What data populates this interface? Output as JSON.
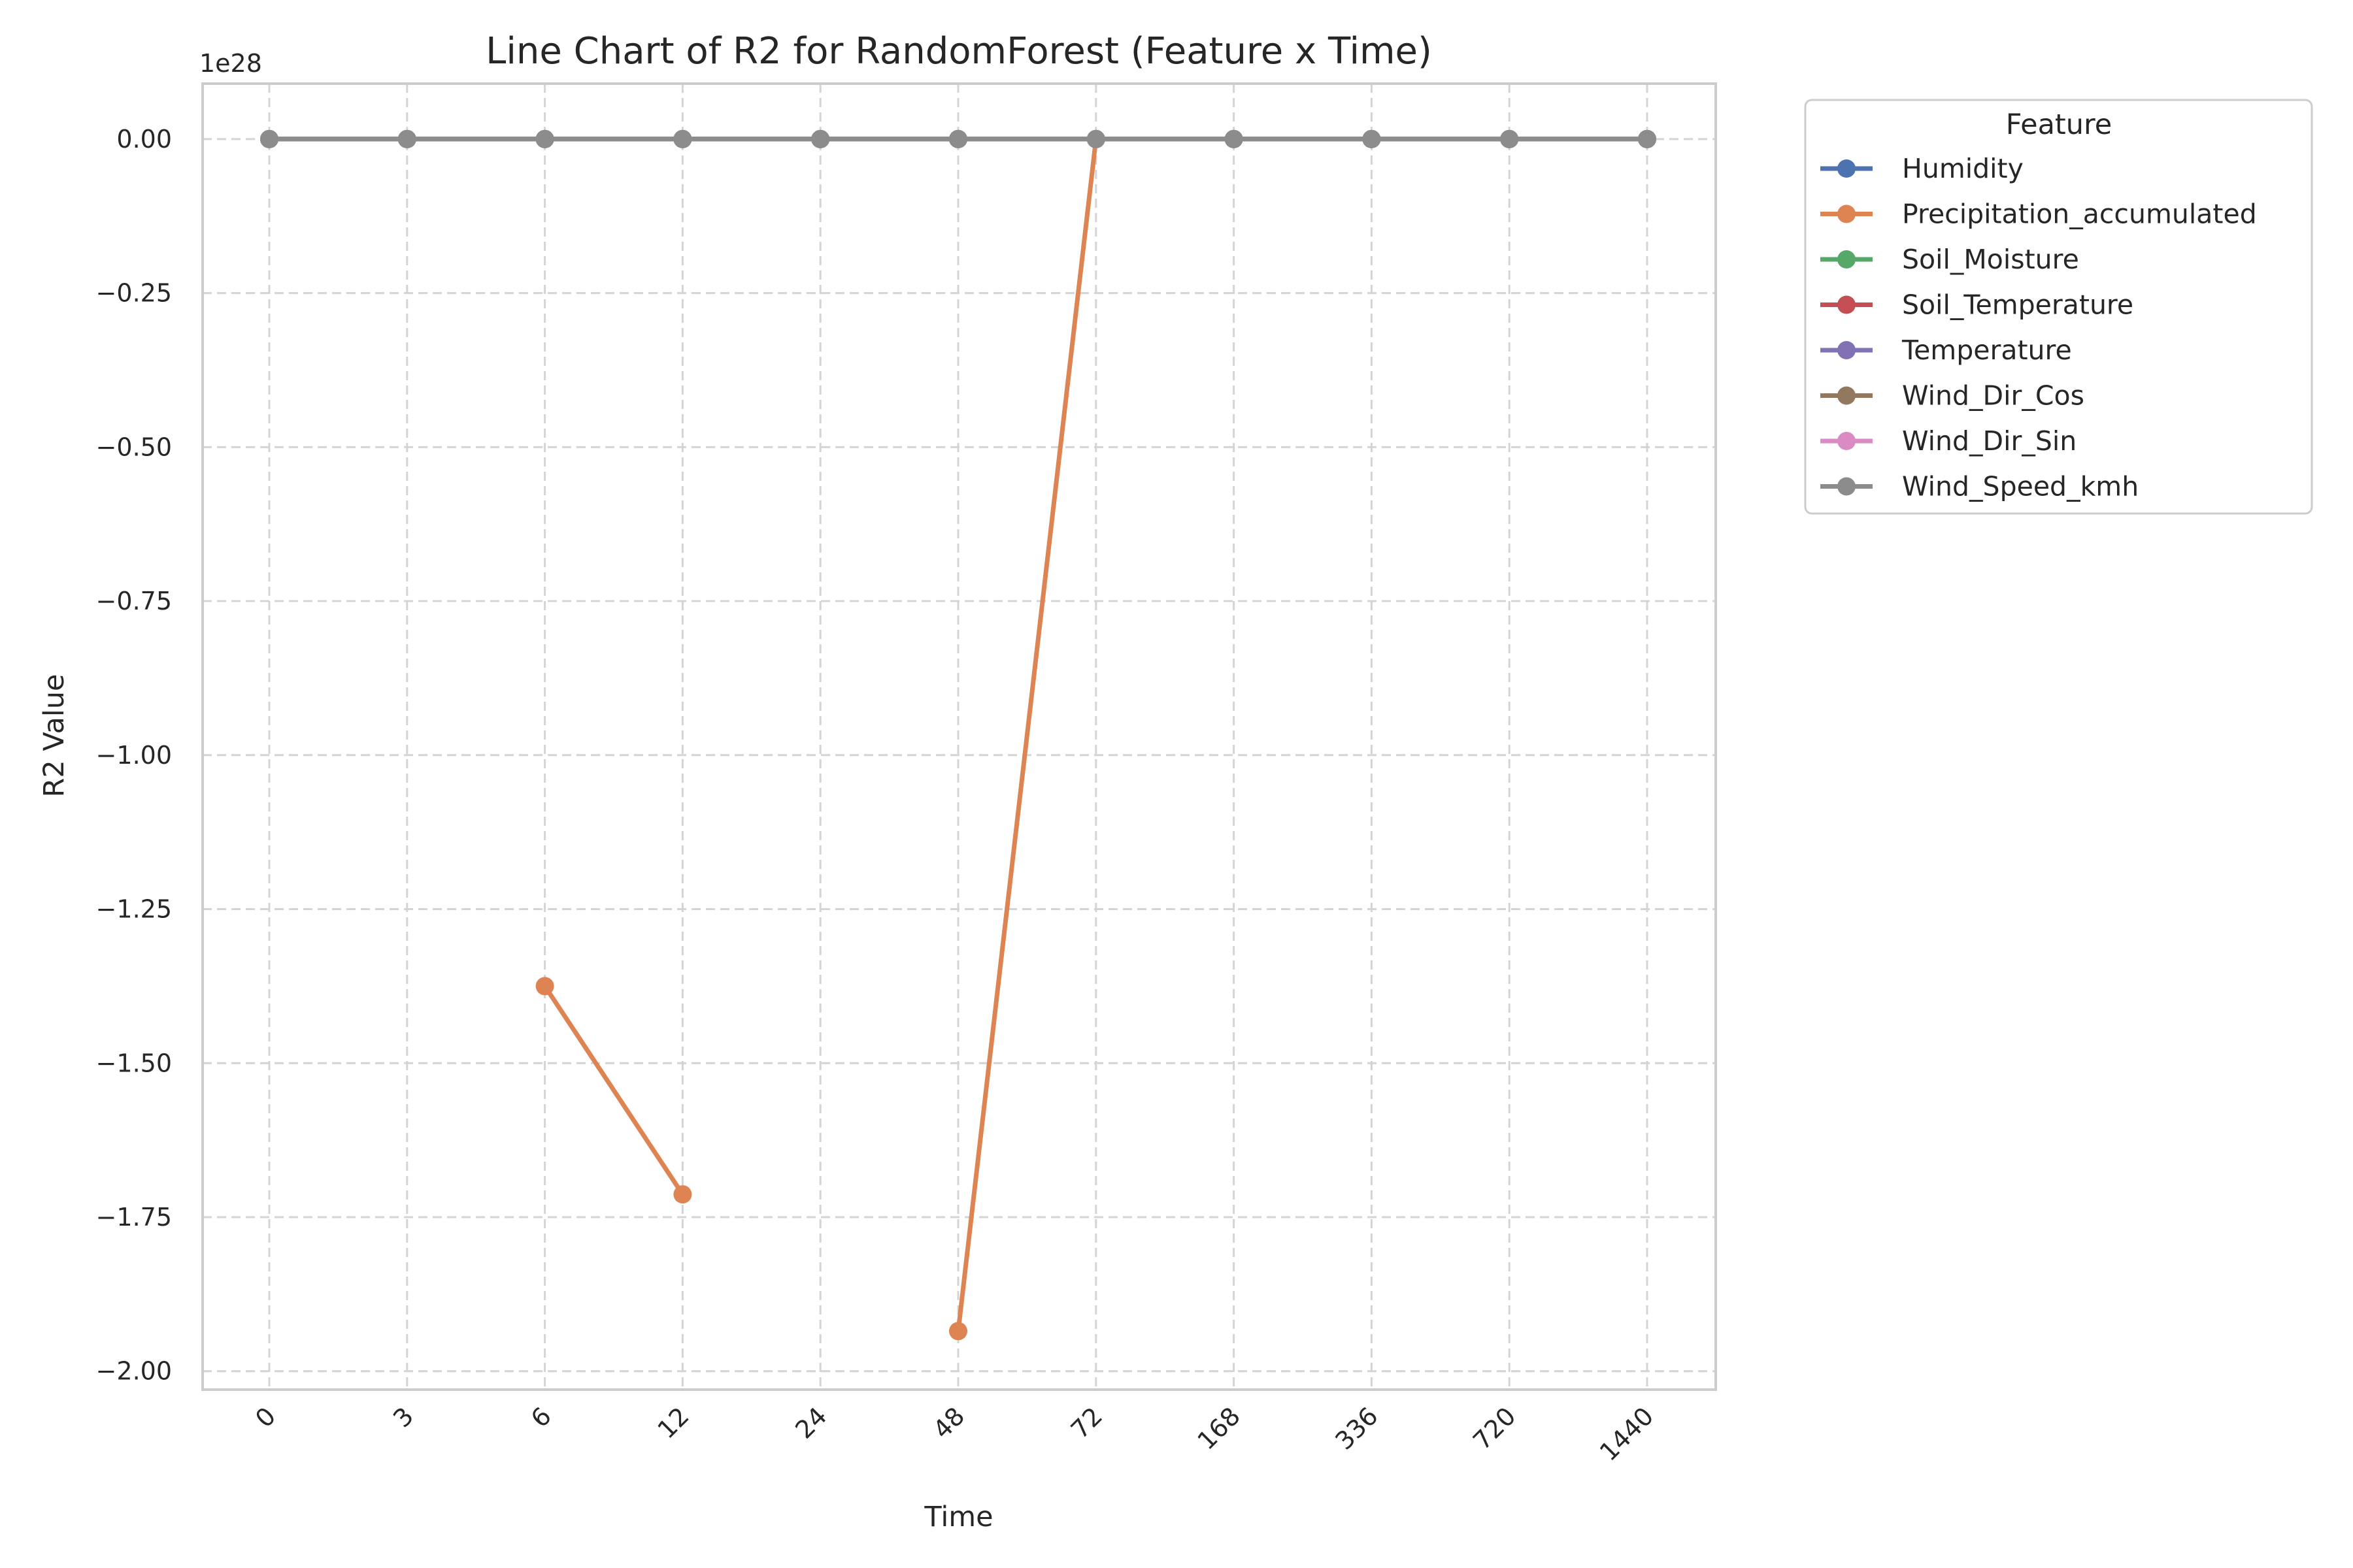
{
  "chart_data": {
    "type": "line",
    "title": "Line Chart of R2 for RandomForest (Feature x Time)",
    "xlabel": "Time",
    "ylabel": "R2 Value",
    "y_offset_label": "1e28",
    "x_scale": "categorical",
    "categories": [
      "0",
      "3",
      "6",
      "12",
      "24",
      "48",
      "72",
      "168",
      "336",
      "720",
      "1440"
    ],
    "y_scale_factor": 1e+28,
    "ylim": [
      -2.03,
      0.09
    ],
    "y_ticks": [
      0.0,
      -0.25,
      -0.5,
      -0.75,
      -1.0,
      -1.25,
      -1.5,
      -1.75,
      -2.0
    ],
    "y_tick_labels": [
      "0.00",
      "−0.25",
      "−0.50",
      "−0.75",
      "−1.00",
      "−1.25",
      "−1.50",
      "−1.75",
      "−2.00"
    ],
    "grid": true,
    "legend": {
      "title": "Feature",
      "placement": "outside-top-right"
    },
    "series": [
      {
        "name": "Humidity",
        "color": "#4c72b0",
        "values": [
          0,
          0,
          0,
          0,
          0,
          0,
          0,
          0,
          0,
          0,
          0
        ]
      },
      {
        "name": "Precipitation_accumulated",
        "color": "#dd8452",
        "values": [
          null,
          null,
          -1.375,
          -1.713,
          null,
          -1.935,
          0,
          null,
          null,
          null,
          null
        ]
      },
      {
        "name": "Soil_Moisture",
        "color": "#55a868",
        "values": [
          0,
          0,
          0,
          0,
          0,
          0,
          0,
          0,
          0,
          0,
          0
        ]
      },
      {
        "name": "Soil_Temperature",
        "color": "#c44e52",
        "values": [
          0,
          0,
          0,
          0,
          0,
          0,
          0,
          0,
          0,
          0,
          0
        ]
      },
      {
        "name": "Temperature",
        "color": "#8172b3",
        "values": [
          0,
          0,
          0,
          0,
          0,
          0,
          0,
          0,
          0,
          0,
          0
        ]
      },
      {
        "name": "Wind_Dir_Cos",
        "color": "#937860",
        "values": [
          0,
          0,
          0,
          0,
          0,
          0,
          0,
          0,
          0,
          0,
          0
        ]
      },
      {
        "name": "Wind_Dir_Sin",
        "color": "#da8bc3",
        "values": [
          0,
          0,
          0,
          0,
          0,
          0,
          0,
          0,
          0,
          0,
          0
        ]
      },
      {
        "name": "Wind_Speed_kmh",
        "color": "#8c8c8c",
        "values": [
          0,
          0,
          0,
          0,
          0,
          0,
          0,
          0,
          0,
          0,
          0
        ]
      }
    ]
  }
}
